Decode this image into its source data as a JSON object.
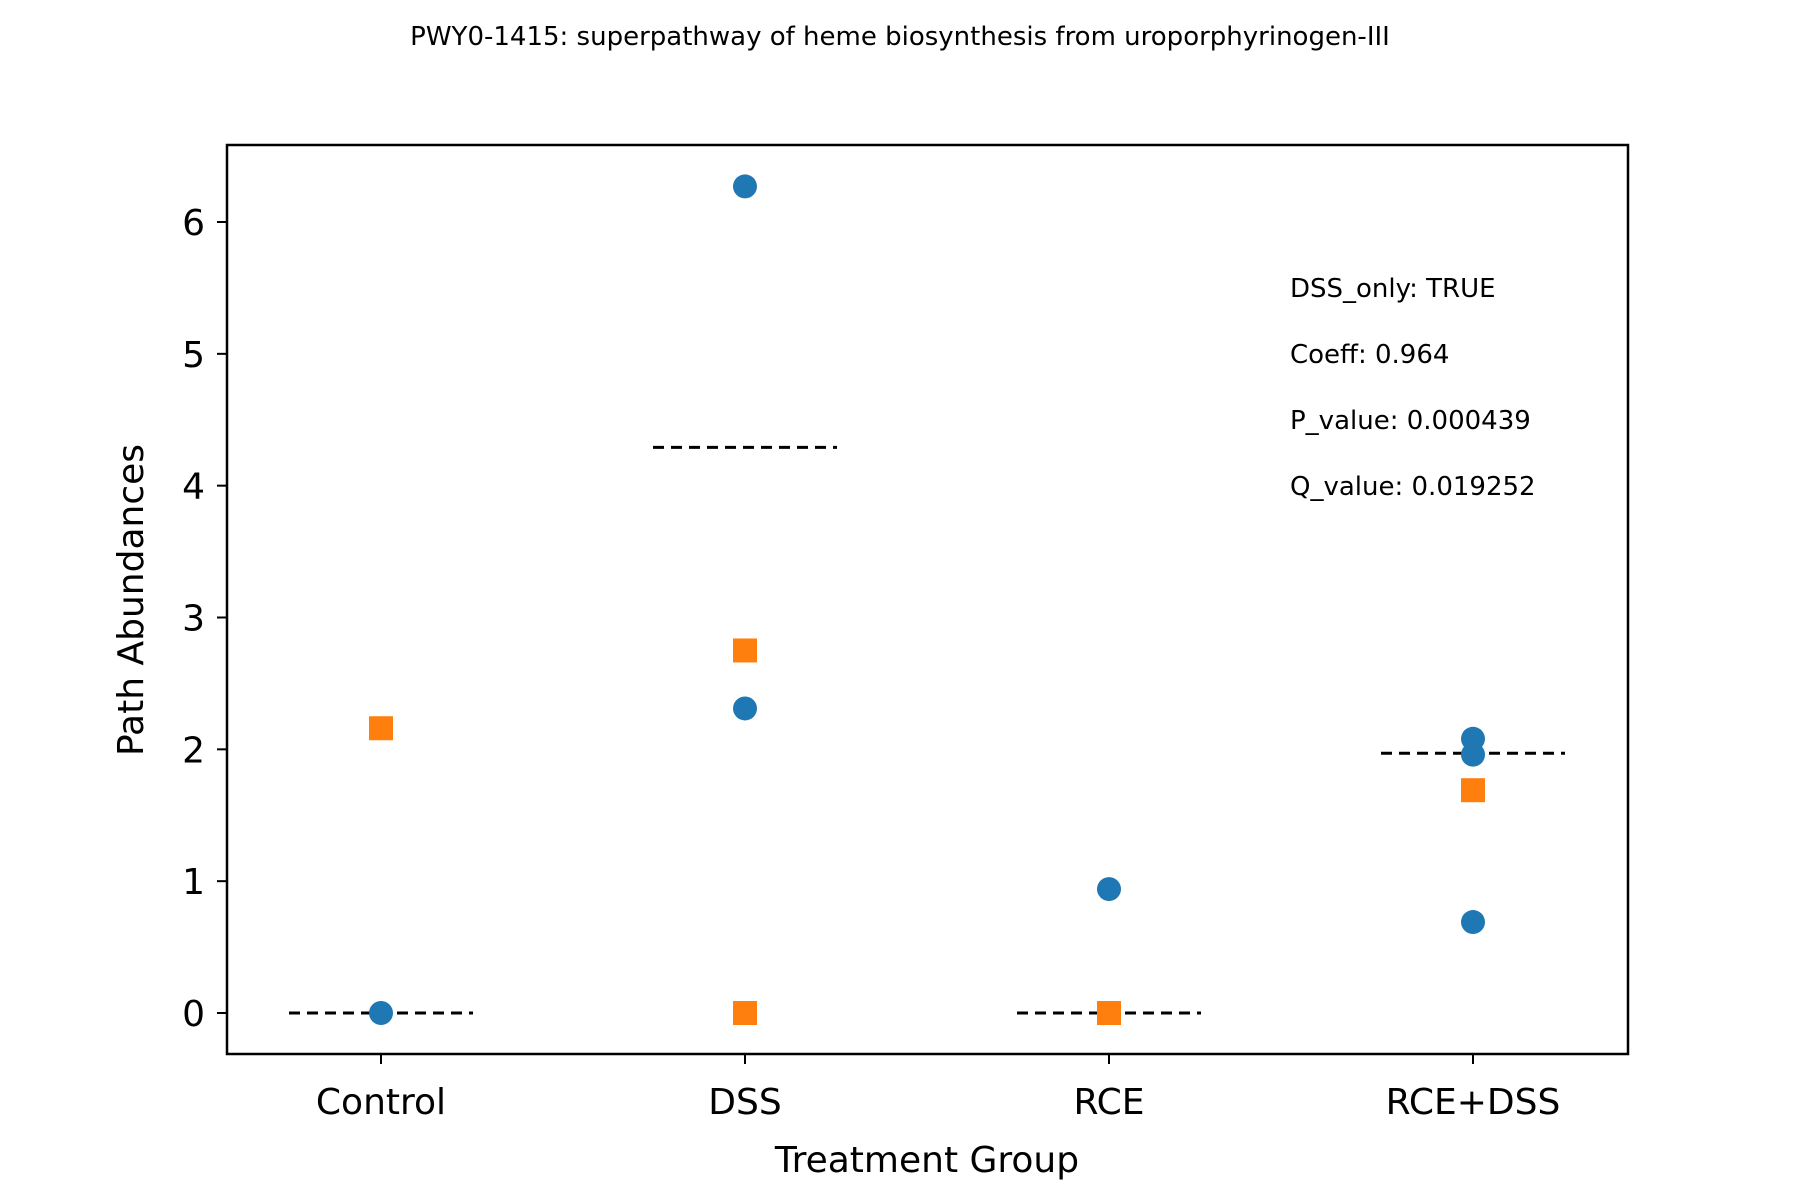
{
  "chart_data": {
    "type": "scatter",
    "title": "PWY0-1415: superpathway of heme biosynthesis from uroporphyrinogen-III",
    "xlabel": "Treatment Group",
    "ylabel": "Path Abundances",
    "categories": [
      "Control",
      "DSS",
      "RCE",
      "RCE+DSS"
    ],
    "yticks": [
      "0",
      "1",
      "2",
      "3",
      "4",
      "5",
      "6"
    ],
    "ylim": [
      -0.31,
      6.57
    ],
    "grid": false,
    "series": [
      {
        "marker": "circle",
        "color": "#1f77b4",
        "points": [
          {
            "category": "Control",
            "y": 0.0
          },
          {
            "category": "DSS",
            "y": 6.27
          },
          {
            "category": "DSS",
            "y": 2.31
          },
          {
            "category": "RCE",
            "y": 0.94
          },
          {
            "category": "RCE+DSS",
            "y": 2.08
          },
          {
            "category": "RCE+DSS",
            "y": 1.96
          },
          {
            "category": "RCE+DSS",
            "y": 0.69
          }
        ]
      },
      {
        "marker": "square",
        "color": "#ff7f0e",
        "points": [
          {
            "category": "Control",
            "y": 2.16
          },
          {
            "category": "DSS",
            "y": 2.75
          },
          {
            "category": "DSS",
            "y": 0.0
          },
          {
            "category": "RCE",
            "y": 0.0
          },
          {
            "category": "RCE+DSS",
            "y": 1.69
          }
        ]
      }
    ],
    "group_lines": [
      {
        "category": "Control",
        "y": 0.0
      },
      {
        "category": "DSS",
        "y": 4.29
      },
      {
        "category": "RCE",
        "y": 0.0
      },
      {
        "category": "RCE+DSS",
        "y": 1.97
      }
    ],
    "annotations": [
      "DSS_only: TRUE",
      "Coeff: 0.964",
      "P_value: 0.000439",
      "Q_value: 0.019252"
    ]
  }
}
